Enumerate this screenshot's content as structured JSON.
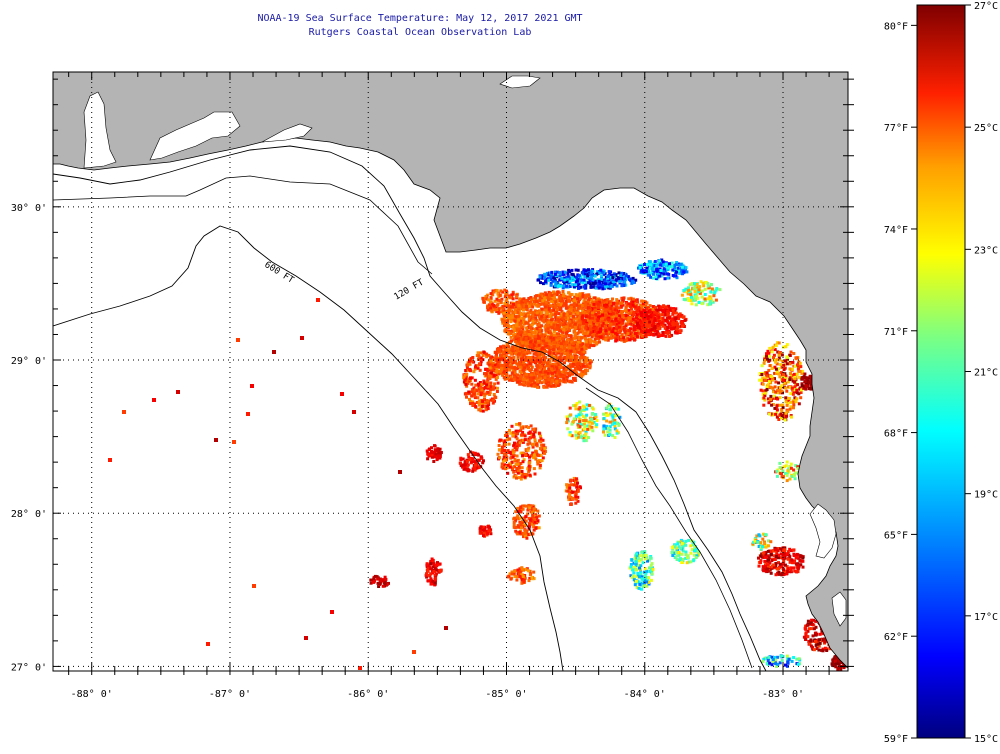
{
  "title": {
    "line1": "NOAA-19 Sea Surface Temperature:  May 12, 2017 2021 GMT",
    "line2": "Rutgers Coastal Ocean Observation Lab"
  },
  "axes": {
    "lon_labels": [
      "-88° 0'",
      "-87° 0'",
      "-86° 0'",
      "-85° 0'",
      "-84° 0'",
      "-83° 0'"
    ],
    "lat_labels": [
      "30° 0'",
      "29° 0'",
      "28° 0'",
      "27° 0'"
    ],
    "lon_values": [
      -88,
      -87,
      -86,
      -85,
      -84,
      -83
    ],
    "lat_values": [
      30,
      29,
      28,
      27
    ],
    "lon_range": [
      -88.28,
      -82.53
    ],
    "lat_range": [
      26.97,
      30.88
    ]
  },
  "contours": {
    "inner_label": "120 FT",
    "outer_label": "600 FT"
  },
  "colorbar": {
    "celsius_labels": [
      "27°C",
      "25°C",
      "23°C",
      "21°C",
      "19°C",
      "17°C",
      "15°C"
    ],
    "fahrenheit_labels": [
      "80°F",
      "77°F",
      "74°F",
      "71°F",
      "68°F",
      "65°F",
      "62°F",
      "59°F"
    ],
    "celsius_range": [
      15,
      27
    ],
    "colormap": [
      "#00007f",
      "#0000ff",
      "#007fff",
      "#00ffff",
      "#7fff7f",
      "#ffff00",
      "#ff7f00",
      "#ff0000",
      "#7f0000"
    ]
  },
  "colors": {
    "land": "#b4b4b4",
    "ocean": "#ffffff",
    "title": "#1a1aa6"
  }
}
